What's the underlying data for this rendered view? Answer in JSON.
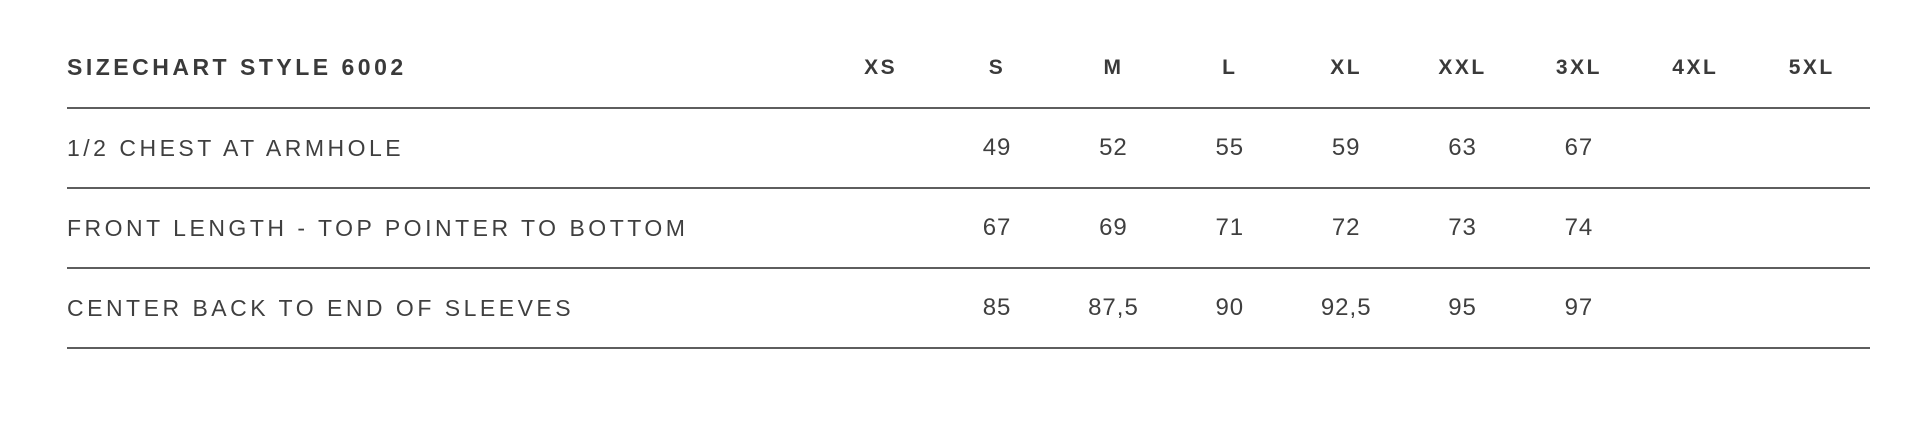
{
  "chart_data": {
    "type": "table",
    "title": "SIZECHART STYLE 6002",
    "columns": [
      "XS",
      "S",
      "M",
      "L",
      "XL",
      "XXL",
      "3XL",
      "4XL",
      "5XL"
    ],
    "rows": [
      {
        "label": "1/2 CHEST AT ARMHOLE",
        "values": [
          "",
          "49",
          "52",
          "55",
          "59",
          "63",
          "67",
          "",
          ""
        ]
      },
      {
        "label": "FRONT LENGTH - TOP POINTER TO BOTTOM",
        "values": [
          "",
          "67",
          "69",
          "71",
          "72",
          "73",
          "74",
          "",
          ""
        ]
      },
      {
        "label": "CENTER BACK TO END OF SLEEVES",
        "values": [
          "",
          "85",
          "87,5",
          "90",
          "92,5",
          "95",
          "97",
          "",
          ""
        ]
      }
    ],
    "layout": {
      "grid": "horizontal-rules-only",
      "empty_columns": [
        "XS",
        "4XL",
        "5XL"
      ]
    }
  },
  "colors": {
    "background": "#ffffff",
    "text": "#3a3a3a",
    "rule_line": "#5e5e5e"
  }
}
